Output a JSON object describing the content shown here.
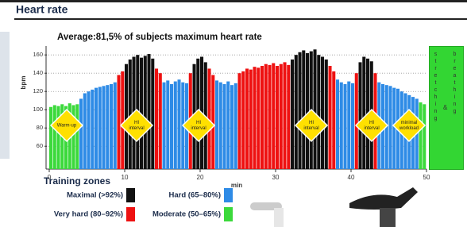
{
  "header": {
    "title": "Heart rate"
  },
  "chart_data": {
    "type": "bar",
    "title": "Average:81,5% of subjects maximum heart rate",
    "y_label": "bpm",
    "x_label": "min",
    "xlim": [
      0,
      50
    ],
    "xticks": [
      0,
      10,
      20,
      30,
      40,
      50
    ],
    "ylim": [
      35,
      168
    ],
    "yticks": [
      60,
      80,
      100,
      120,
      140,
      160
    ],
    "grid": true,
    "bar_width": 0.5,
    "x": [
      0,
      0.5,
      1,
      1.5,
      2,
      2.5,
      3,
      3.5,
      4,
      4.5,
      5,
      5.5,
      6,
      6.5,
      7,
      7.5,
      8,
      8.5,
      9,
      9.5,
      10,
      10.5,
      11,
      11.5,
      12,
      12.5,
      13,
      13.5,
      14,
      14.5,
      15,
      15.5,
      16,
      16.5,
      17,
      17.5,
      18,
      18.5,
      19,
      19.5,
      20,
      20.5,
      21,
      21.5,
      22,
      22.5,
      23,
      23.5,
      24,
      24.5,
      25,
      25.5,
      26,
      26.5,
      27,
      27.5,
      28,
      28.5,
      29,
      29.5,
      30,
      30.5,
      31,
      31.5,
      32,
      32.5,
      33,
      33.5,
      34,
      34.5,
      35,
      35.5,
      36,
      36.5,
      37,
      37.5,
      38,
      38.5,
      39,
      39.5,
      40,
      40.5,
      41,
      41.5,
      42,
      42.5,
      43,
      43.5,
      44,
      44.5,
      45,
      45.5,
      46,
      46.5,
      47,
      47.5,
      48,
      48.5,
      49,
      49.5
    ],
    "values": [
      103,
      105,
      104,
      106,
      104,
      107,
      105,
      106,
      112,
      118,
      120,
      122,
      124,
      125,
      126,
      127,
      128,
      130,
      138,
      142,
      150,
      155,
      158,
      160,
      157,
      159,
      161,
      156,
      145,
      140,
      130,
      132,
      128,
      131,
      133,
      130,
      129,
      140,
      150,
      156,
      158,
      152,
      145,
      138,
      132,
      130,
      128,
      131,
      127,
      129,
      140,
      142,
      145,
      144,
      147,
      146,
      148,
      150,
      149,
      151,
      148,
      150,
      152,
      149,
      155,
      160,
      163,
      165,
      162,
      164,
      166,
      160,
      158,
      155,
      148,
      142,
      133,
      130,
      128,
      131,
      129,
      140,
      152,
      158,
      156,
      153,
      140,
      130,
      128,
      127,
      126,
      124,
      123,
      120,
      118,
      116,
      114,
      112,
      108,
      106
    ],
    "bar_colors": [
      "#3bd93b",
      "#3bd93b",
      "#3bd93b",
      "#3bd93b",
      "#3bd93b",
      "#3bd93b",
      "#3bd93b",
      "#3bd93b",
      "#2e8be6",
      "#2e8be6",
      "#2e8be6",
      "#2e8be6",
      "#2e8be6",
      "#2e8be6",
      "#2e8be6",
      "#2e8be6",
      "#2e8be6",
      "#2e8be6",
      "#ee1111",
      "#ee1111",
      "#111111",
      "#111111",
      "#111111",
      "#111111",
      "#111111",
      "#111111",
      "#111111",
      "#111111",
      "#ee1111",
      "#ee1111",
      "#2e8be6",
      "#2e8be6",
      "#2e8be6",
      "#2e8be6",
      "#2e8be6",
      "#2e8be6",
      "#2e8be6",
      "#ee1111",
      "#111111",
      "#111111",
      "#111111",
      "#111111",
      "#ee1111",
      "#ee1111",
      "#2e8be6",
      "#2e8be6",
      "#2e8be6",
      "#2e8be6",
      "#2e8be6",
      "#2e8be6",
      "#ee1111",
      "#ee1111",
      "#ee1111",
      "#ee1111",
      "#ee1111",
      "#ee1111",
      "#ee1111",
      "#ee1111",
      "#ee1111",
      "#ee1111",
      "#ee1111",
      "#ee1111",
      "#ee1111",
      "#ee1111",
      "#111111",
      "#111111",
      "#111111",
      "#111111",
      "#111111",
      "#111111",
      "#111111",
      "#111111",
      "#111111",
      "#111111",
      "#ee1111",
      "#ee1111",
      "#2e8be6",
      "#2e8be6",
      "#2e8be6",
      "#2e8be6",
      "#2e8be6",
      "#ee1111",
      "#111111",
      "#111111",
      "#111111",
      "#111111",
      "#ee1111",
      "#2e8be6",
      "#2e8be6",
      "#2e8be6",
      "#2e8be6",
      "#2e8be6",
      "#2e8be6",
      "#2e8be6",
      "#2e8be6",
      "#2e8be6",
      "#2e8be6",
      "#2e8be6",
      "#3bd93b",
      "#3bd93b"
    ],
    "annotations": [
      {
        "lines": [
          "Warm-up"
        ]
      },
      {
        "lines": [
          "HI",
          "interval"
        ]
      },
      {
        "lines": [
          "HI",
          "interval"
        ]
      },
      {
        "lines": [
          "HI",
          "interval"
        ]
      },
      {
        "lines": [
          "HI",
          "interval"
        ]
      },
      {
        "lines": [
          "minimal",
          "workload"
        ]
      }
    ],
    "side_box": {
      "left": "stretching",
      "middle": "&",
      "right": "breathing"
    },
    "legend_title": "Training zones",
    "legend": [
      {
        "label": "Maximal (>92%)",
        "color": "#111111"
      },
      {
        "label": "Hard (65–80%)",
        "color": "#2e8be6"
      },
      {
        "label": "Very hard (80–92%)",
        "color": "#ee1111"
      },
      {
        "label": "Moderate (50–65%)",
        "color": "#3bd93b"
      }
    ]
  }
}
